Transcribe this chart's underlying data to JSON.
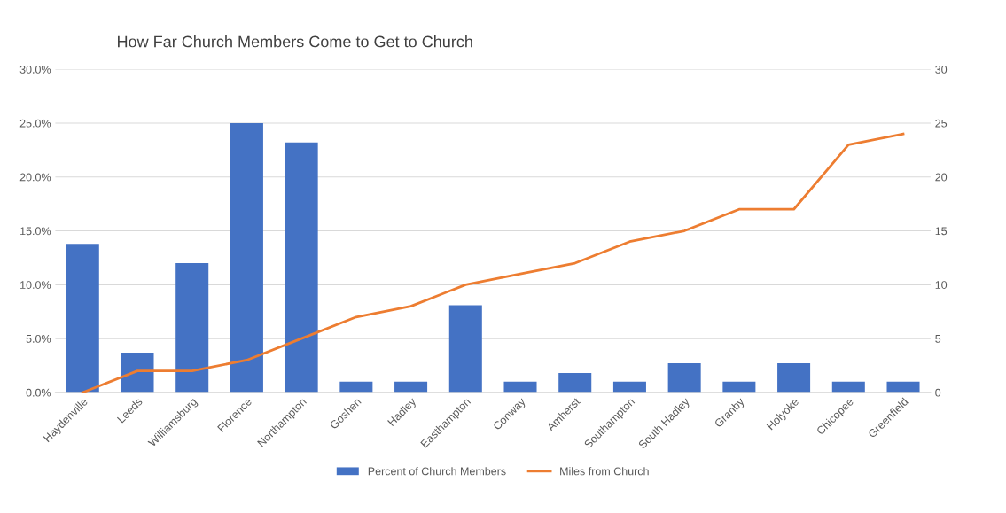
{
  "chart_data": {
    "type": "bar",
    "title": "How Far Church Members Come to Get to Church",
    "categories": [
      "Haydenville",
      "Leeds",
      "Williamsburg",
      "Florence",
      "Northampton",
      "Goshen",
      "Hadley",
      "Easthampton",
      "Conway",
      "Amherst",
      "Southampton",
      "South Hadley",
      "Granby",
      "Holyoke",
      "Chicopee",
      "Greenfield"
    ],
    "series": [
      {
        "name": "Percent of Church Members",
        "color": "#4472c4",
        "values": [
          13.8,
          3.7,
          12.0,
          25.0,
          23.2,
          1.0,
          1.0,
          8.1,
          1.0,
          1.8,
          1.0,
          2.7,
          1.0,
          2.7,
          1.0,
          1.0
        ]
      },
      {
        "name": "Miles from Church",
        "color": "#ed7d31",
        "type": "line",
        "axis": "y2",
        "values": [
          0,
          2,
          2,
          3,
          5,
          7,
          8,
          10,
          11,
          12,
          14,
          15,
          17,
          17,
          23,
          24
        ]
      }
    ],
    "ylim": [
      0,
      30
    ],
    "yticks": [
      {
        "value": 0,
        "label": "0.0%"
      },
      {
        "value": 5,
        "label": "5.0%"
      },
      {
        "value": 10,
        "label": "10.0%"
      },
      {
        "value": 15,
        "label": "15.0%"
      },
      {
        "value": 20,
        "label": "20.0%"
      },
      {
        "value": 25,
        "label": "25.0%"
      },
      {
        "value": 30,
        "label": "30.0%"
      }
    ],
    "y2lim": [
      0,
      30
    ],
    "y2ticks": [
      0,
      5,
      10,
      15,
      20,
      25,
      30
    ],
    "grid": "y",
    "legend": "bottom",
    "marker": "none",
    "line_style": "solid"
  }
}
